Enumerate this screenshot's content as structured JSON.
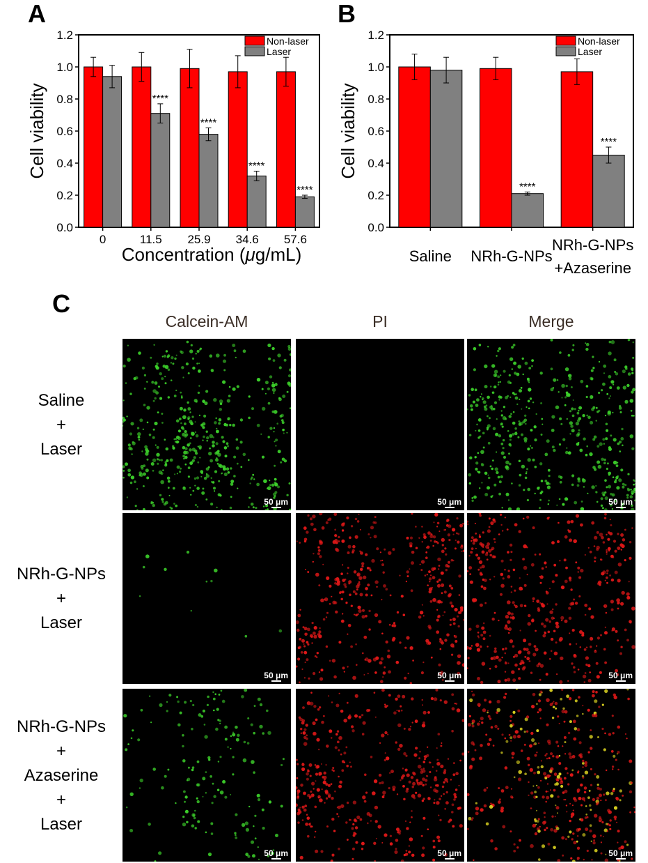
{
  "panels": {
    "a": "A",
    "b": "B",
    "c": "C"
  },
  "chart_data": [
    {
      "type": "bar",
      "panel": "A",
      "categories": [
        "0",
        "11.5",
        "25.9",
        "34.6",
        "57.6"
      ],
      "series": [
        {
          "name": "Non-laser",
          "color": "#ff0000",
          "values": [
            1.0,
            1.0,
            0.99,
            0.97,
            0.97
          ],
          "errors": [
            0.06,
            0.09,
            0.12,
            0.1,
            0.09
          ]
        },
        {
          "name": "Laser",
          "color": "#808080",
          "values": [
            0.94,
            0.71,
            0.58,
            0.32,
            0.19
          ],
          "errors": [
            0.07,
            0.06,
            0.04,
            0.03,
            0.01
          ]
        }
      ],
      "annotations": [
        {
          "category": "11.5",
          "series": "Laser",
          "text": "****"
        },
        {
          "category": "25.9",
          "series": "Laser",
          "text": "****"
        },
        {
          "category": "34.6",
          "series": "Laser",
          "text": "****"
        },
        {
          "category": "57.6",
          "series": "Laser",
          "text": "****"
        }
      ],
      "xlabel": "Concentration (μg/mL)",
      "ylabel": "Cell viability",
      "ylim": [
        0,
        1.2
      ],
      "yticks": [
        "0.0",
        "0.2",
        "0.4",
        "0.6",
        "0.8",
        "1.0",
        "1.2"
      ],
      "grid": false,
      "legend": "top-right"
    },
    {
      "type": "bar",
      "panel": "B",
      "categories": [
        "Saline",
        "NRh-G-NPs",
        "NRh-G-NPs\n+Azaserine"
      ],
      "series": [
        {
          "name": "Non-laser",
          "color": "#ff0000",
          "values": [
            1.0,
            0.99,
            0.97
          ],
          "errors": [
            0.08,
            0.07,
            0.08
          ]
        },
        {
          "name": "Laser",
          "color": "#808080",
          "values": [
            0.98,
            0.21,
            0.45
          ],
          "errors": [
            0.08,
            0.01,
            0.05
          ]
        }
      ],
      "annotations": [
        {
          "category": "NRh-G-NPs",
          "series": "Laser",
          "text": "****"
        },
        {
          "category": "NRh-G-NPs\n+Azaserine",
          "series": "Laser",
          "text": "****"
        }
      ],
      "xlabel": "",
      "ylabel": "Cell viability",
      "ylim": [
        0,
        1.2
      ],
      "yticks": [
        "0.0",
        "0.2",
        "0.4",
        "0.6",
        "0.8",
        "1.0",
        "1.2"
      ],
      "grid": false,
      "legend": "top-right"
    }
  ],
  "microscopy": {
    "columns": [
      "Calcein-AM",
      "PI",
      "Merge"
    ],
    "rows": [
      {
        "label_lines": [
          "Saline",
          "+",
          "Laser"
        ],
        "stains": [
          "green",
          "none",
          "green"
        ]
      },
      {
        "label_lines": [
          "NRh-G-NPs",
          "+",
          "Laser"
        ],
        "stains": [
          "sparse-green",
          "red",
          "red"
        ]
      },
      {
        "label_lines": [
          "NRh-G-NPs",
          "+",
          "Azaserine",
          "+",
          "Laser"
        ],
        "stains": [
          "medium-green",
          "red",
          "red-yellow"
        ]
      }
    ],
    "scale_bar": "50 μm",
    "colors": {
      "green": "#3ccf2a",
      "red": "#e01818",
      "yellow": "#d8d020",
      "background": "#000000"
    }
  }
}
